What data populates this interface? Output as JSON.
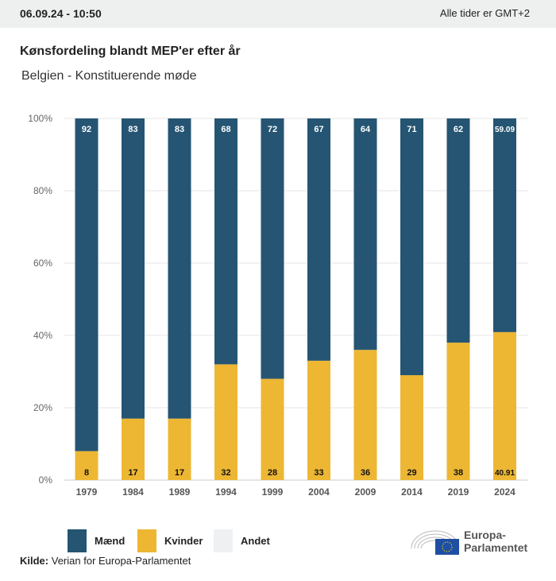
{
  "header": {
    "timestamp": "06.09.24 - 10:50",
    "timezone": "Alle tider er GMT+2"
  },
  "title": "Kønsfordeling blandt MEP'er efter år",
  "subtitle": "Belgien - Konstituerende møde",
  "chart_data": {
    "type": "bar",
    "stacked": true,
    "categories": [
      "1979",
      "1984",
      "1989",
      "1994",
      "1999",
      "2004",
      "2009",
      "2014",
      "2019",
      "2024"
    ],
    "series": [
      {
        "name": "Kvinder",
        "color": "#edb733",
        "values": [
          8,
          17,
          17,
          32,
          28,
          33,
          36,
          29,
          38,
          40.91
        ],
        "labels": [
          "8",
          "17",
          "17",
          "32",
          "28",
          "33",
          "36",
          "29",
          "38",
          "40.91"
        ]
      },
      {
        "name": "Mænd",
        "color": "#255572",
        "values": [
          92,
          83,
          83,
          68,
          72,
          67,
          64,
          71,
          62,
          59.09
        ],
        "labels": [
          "92",
          "83",
          "83",
          "68",
          "72",
          "67",
          "64",
          "71",
          "62",
          "59.09"
        ]
      }
    ],
    "yticks": [
      "0%",
      "20%",
      "40%",
      "60%",
      "80%",
      "100%"
    ],
    "ylim": [
      0,
      100
    ],
    "grid": true
  },
  "legend": [
    {
      "label": "Mænd",
      "color": "#255572"
    },
    {
      "label": "Kvinder",
      "color": "#edb733"
    },
    {
      "label": "Andet",
      "color": "#eef0f2"
    }
  ],
  "source": {
    "label": "Kilde:",
    "text": "Verian for Europa-Parlamentet"
  },
  "logo": {
    "line1": "Europa-",
    "line2": "Parlamentet"
  }
}
